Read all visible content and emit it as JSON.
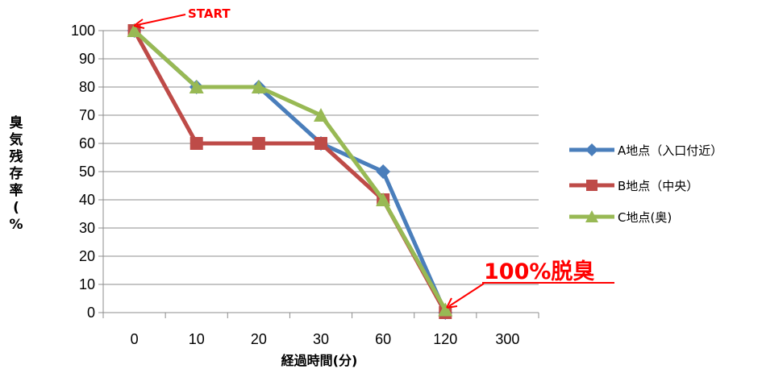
{
  "chart_data": {
    "type": "line",
    "categories": [
      "0",
      "10",
      "20",
      "30",
      "60",
      "120",
      "300"
    ],
    "series": [
      {
        "name": "A地点（入口付近）",
        "values": [
          100,
          80,
          80,
          60,
          50,
          0,
          null
        ],
        "color": "#4a7ebb",
        "marker": "diamond"
      },
      {
        "name": "B地点（中央）",
        "values": [
          100,
          60,
          60,
          60,
          40,
          0,
          null
        ],
        "color": "#be4b48",
        "marker": "square"
      },
      {
        "name": "C地点(奥)",
        "values": [
          100,
          80,
          80,
          70,
          40,
          1,
          null
        ],
        "color": "#98b954",
        "marker": "triangle"
      }
    ],
    "yticks": [
      0,
      10,
      20,
      30,
      40,
      50,
      60,
      70,
      80,
      90,
      100
    ],
    "ylim": [
      0,
      100
    ],
    "xlabel": "経過時間(分)",
    "ylabel": "臭気残存率(%",
    "grid": true,
    "legend_position": "right",
    "annotations": [
      {
        "text": "START",
        "color": "#ff0000"
      },
      {
        "text": "100%脱臭",
        "color": "#ff0000",
        "underline": true
      }
    ]
  }
}
